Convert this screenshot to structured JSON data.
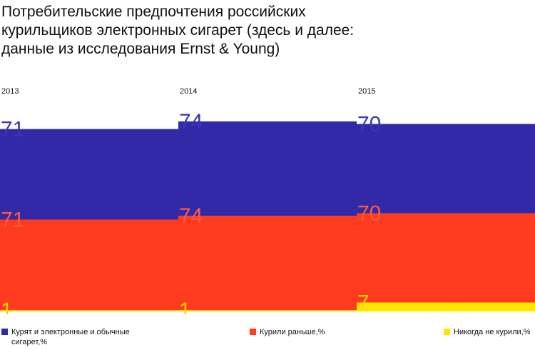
{
  "chart_data": {
    "type": "stacked-step",
    "title": "Потребительские предпочтения российских курильщиков электронных сигарет (здесь и далее: данные из исследования Ernst & Young)",
    "categories": [
      "2013",
      "2014",
      "2015"
    ],
    "series": [
      {
        "name": "Никогда не курили,%",
        "color": "#ffe600",
        "label_color": "#ffd400",
        "values": [
          1,
          1,
          7
        ]
      },
      {
        "name": "Курили раньше,%",
        "color": "#ff3b1f",
        "label_color": "#ff5a3c",
        "values": [
          71,
          74,
          70
        ]
      },
      {
        "name": "Курят и электронные и обычные сигарет,%",
        "color": "#3229a8",
        "label_color": "#3c35b8",
        "values": [
          71,
          74,
          70
        ]
      }
    ],
    "legend_order": [
      2,
      1,
      0
    ]
  }
}
